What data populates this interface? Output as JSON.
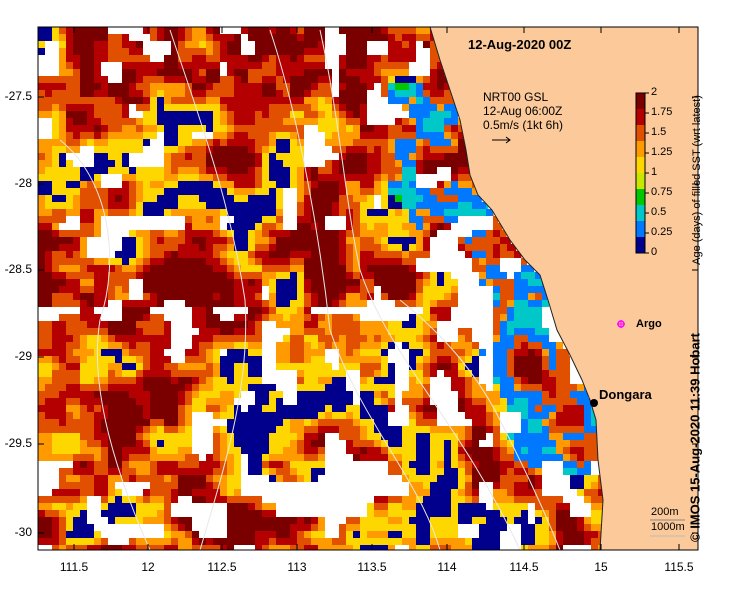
{
  "map": {
    "title": "12-Aug-2020 00Z",
    "current_legend": {
      "product": "NRT00 GSL",
      "time": "12-Aug 06:00Z",
      "scale": "0.5m/s (1kt 6h)"
    },
    "lon_ticks": [
      "111.5",
      "12",
      "112.5",
      "113",
      "113.5",
      "114",
      "114.5",
      "15",
      "115.5"
    ],
    "lat_ticks": [
      "-27.5",
      "-28",
      "-28.5",
      "-29",
      "-29.5",
      "-30"
    ],
    "colorbar": {
      "label": "Age (days) of filled SST (wrt latest)",
      "ticks": [
        "2",
        "1.75",
        "1.5",
        "1.25",
        "1",
        "0.75",
        "0.5",
        "0.25",
        "0"
      ],
      "colors": [
        "#7a0000",
        "#b40000",
        "#e05000",
        "#ff9a00",
        "#ffd700",
        "#c8e600",
        "#00c800",
        "#00c8c8",
        "#0078ff",
        "#00008c"
      ]
    },
    "place_marker": {
      "name": "Dongara"
    },
    "argo_marker": {
      "name": "Argo",
      "color": "#ff00ff"
    },
    "depth_legend": {
      "contour_1": "200m",
      "contour_2": "1000m"
    },
    "credit": "© IMOS 15-Aug-2020 11:39 Hobart",
    "land_color": "#fbc99a"
  }
}
